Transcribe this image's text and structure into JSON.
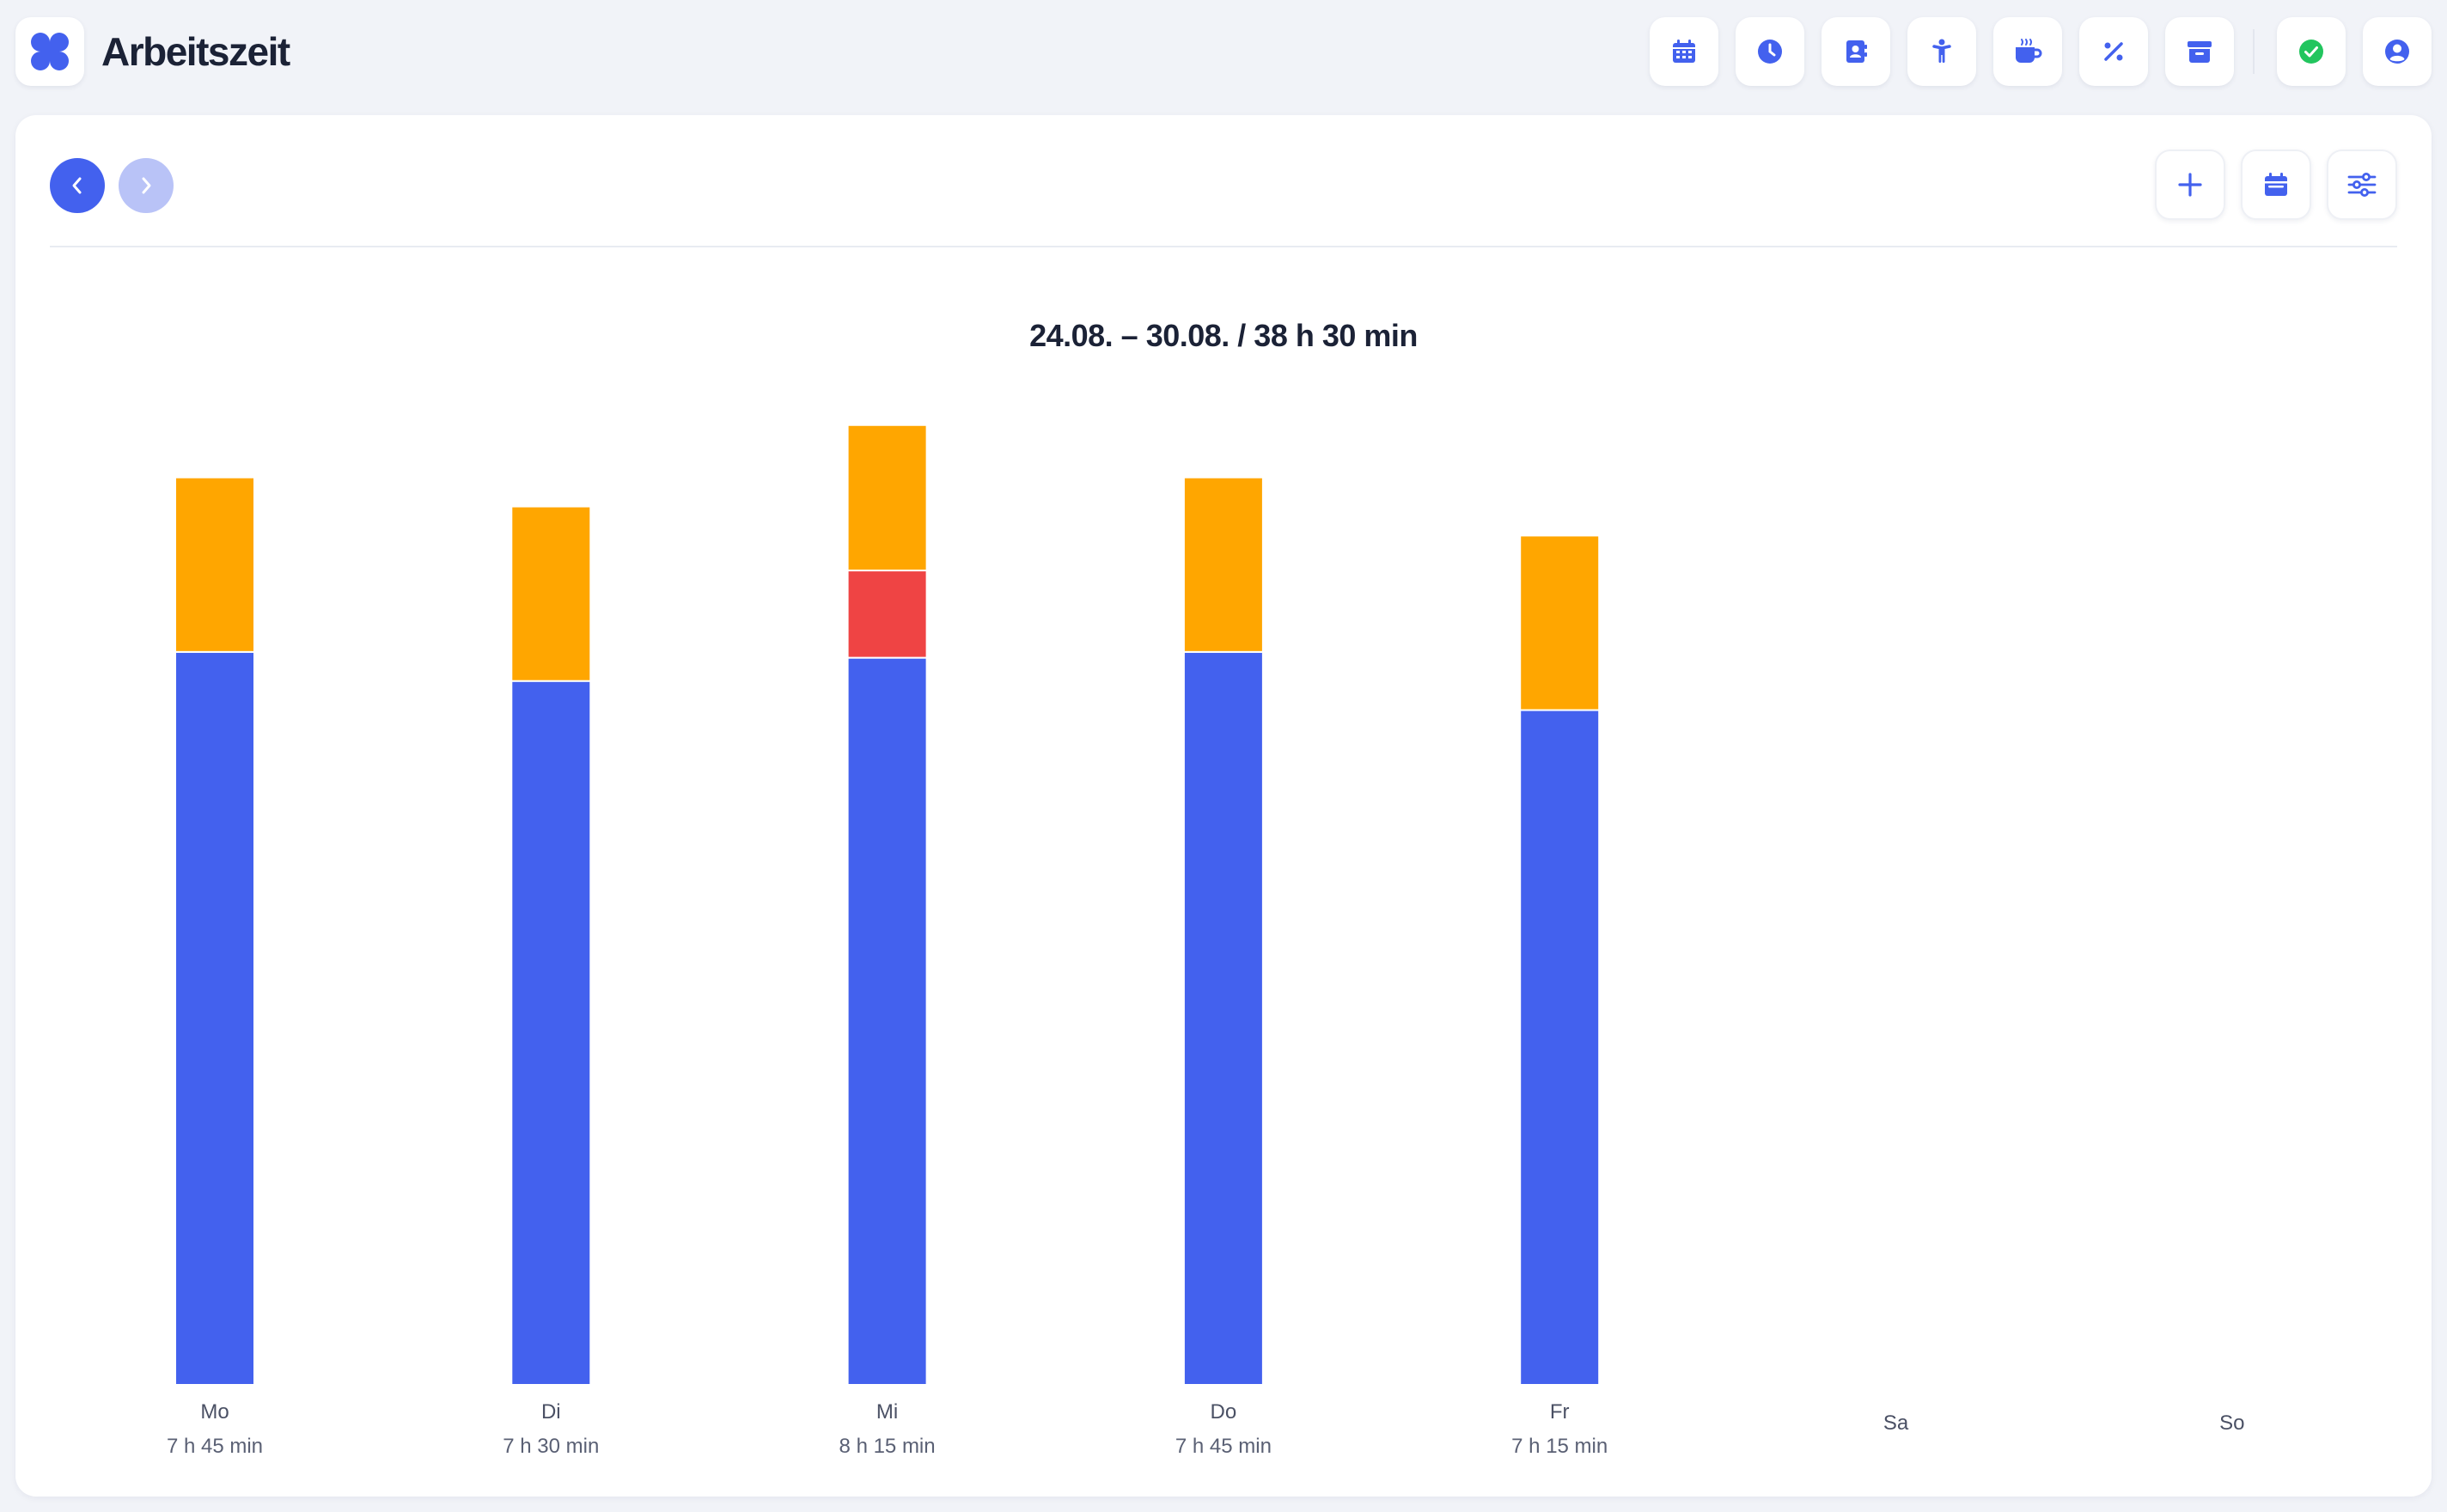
{
  "app": {
    "title": "Arbeitszeit"
  },
  "toolbar": {
    "buttons": [
      {
        "name": "calendar-button",
        "icon": "calendar-grid-icon"
      },
      {
        "name": "time-button",
        "icon": "clock-icon"
      },
      {
        "name": "contacts-button",
        "icon": "address-book-icon"
      },
      {
        "name": "person-button",
        "icon": "person-icon"
      },
      {
        "name": "break-button",
        "icon": "coffee-icon"
      },
      {
        "name": "percent-button",
        "icon": "percent-icon"
      },
      {
        "name": "archive-button",
        "icon": "archive-icon"
      }
    ],
    "status_icon": "check-circle-icon",
    "account_icon": "user-circle-icon"
  },
  "colors": {
    "accent": "#4361ee",
    "work": "#4361ee",
    "overtime": "#ffa600",
    "extra": "#ef4444",
    "status": "#22c55e"
  },
  "chart_data": {
    "type": "bar",
    "stacked": true,
    "title": "24.08. – 30.08. / 38 h 30 min",
    "categories": [
      "Mo",
      "Di",
      "Mi",
      "Do",
      "Fr",
      "Sa",
      "So"
    ],
    "totals": [
      "7 h 45 min",
      "7 h 30 min",
      "8 h 15 min",
      "7 h 45 min",
      "7 h 15 min",
      "",
      ""
    ],
    "series": [
      {
        "color": "#4361ee",
        "values": [
          6.3,
          6.05,
          6.25,
          6.3,
          5.8,
          0,
          0
        ]
      },
      {
        "color": "#ef4444",
        "values": [
          0,
          0,
          0.75,
          0,
          0,
          0,
          0
        ]
      },
      {
        "color": "#ffa600",
        "values": [
          1.5,
          1.5,
          1.25,
          1.5,
          1.5,
          0,
          0
        ]
      }
    ],
    "ylim": [
      0,
      8.3
    ],
    "grid": false,
    "legend": "none"
  }
}
